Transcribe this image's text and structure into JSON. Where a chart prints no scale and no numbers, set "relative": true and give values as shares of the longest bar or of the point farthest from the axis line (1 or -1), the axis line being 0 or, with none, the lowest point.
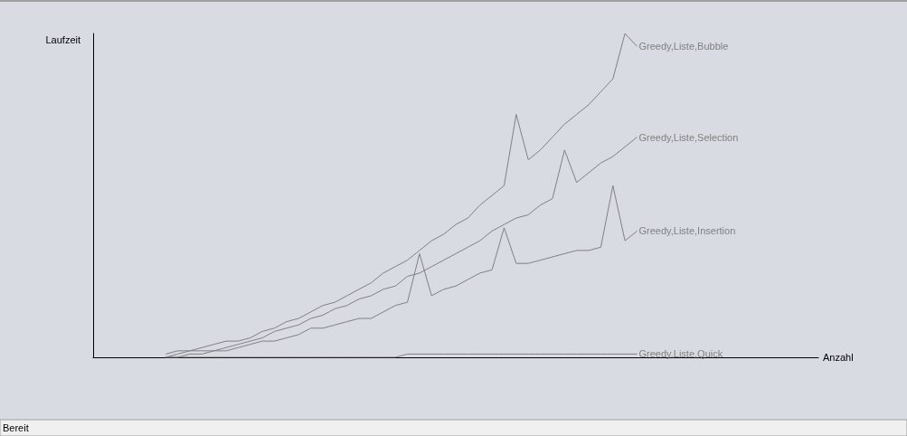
{
  "chart_data": {
    "type": "line",
    "relative": true,
    "ylabel": "Laufzeit",
    "xlabel": "Anzahl",
    "legend": false,
    "marker": "none",
    "line_style": "solid",
    "annotations": [
      "Bereit"
    ],
    "categories": [
      null,
      null,
      null,
      null,
      null,
      null,
      null,
      null,
      null,
      null,
      null,
      null,
      null,
      null,
      null,
      null,
      null,
      null,
      null,
      null,
      null,
      null,
      null,
      null,
      null,
      null,
      null,
      null,
      null,
      null,
      null,
      null,
      null,
      null,
      null,
      null,
      null,
      null,
      null,
      null,
      null,
      null,
      null,
      null,
      null,
      null,
      null,
      null,
      null,
      null,
      null,
      null,
      null,
      null,
      null,
      null,
      null,
      null,
      null,
      null,
      null
    ],
    "series": [
      {
        "name": "Greedy,Liste,Bubble",
        "color": "#808080",
        "values": [
          null,
          null,
          null,
          null,
          null,
          null,
          0.01,
          0.02,
          0.02,
          0.03,
          0.04,
          0.05,
          0.05,
          0.06,
          0.08,
          0.09,
          0.11,
          0.12,
          0.14,
          0.16,
          0.17,
          0.19,
          0.21,
          0.23,
          0.26,
          0.28,
          0.3,
          0.33,
          0.36,
          0.38,
          0.41,
          0.43,
          0.47,
          0.5,
          0.53,
          0.75,
          0.61,
          0.64,
          0.68,
          0.72,
          0.75,
          0.78,
          0.82,
          0.86,
          1,
          0.96,
          null,
          null,
          null,
          null,
          null,
          null,
          null,
          null,
          null,
          null,
          null,
          null,
          null,
          null,
          null
        ]
      },
      {
        "name": "Greedy,Liste,Selection",
        "color": "#808080",
        "values": [
          null,
          null,
          null,
          null,
          null,
          null,
          0,
          0.01,
          0.02,
          0.02,
          0.02,
          0.03,
          0.04,
          0.05,
          0.06,
          0.08,
          0.09,
          0.1,
          0.12,
          0.13,
          0.15,
          0.16,
          0.18,
          0.19,
          0.21,
          0.22,
          0.25,
          0.26,
          0.28,
          0.3,
          0.32,
          0.34,
          0.36,
          0.39,
          0.41,
          0.43,
          0.44,
          0.47,
          0.49,
          0.64,
          0.54,
          0.57,
          0.6,
          0.62,
          0.65,
          0.68,
          null,
          null,
          null,
          null,
          null,
          null,
          null,
          null,
          null,
          null,
          null,
          null,
          null,
          null,
          null
        ]
      },
      {
        "name": "Greedy,Liste,Insertion",
        "color": "#808080",
        "values": [
          null,
          null,
          null,
          null,
          null,
          null,
          0,
          0,
          0.01,
          0.01,
          0.02,
          0.02,
          0.03,
          0.04,
          0.05,
          0.05,
          0.06,
          0.07,
          0.09,
          0.09,
          0.1,
          0.11,
          0.12,
          0.12,
          0.14,
          0.16,
          0.17,
          0.32,
          0.19,
          0.21,
          0.22,
          0.24,
          0.26,
          0.27,
          0.4,
          0.29,
          0.29,
          0.3,
          0.31,
          0.32,
          0.33,
          0.33,
          0.34,
          0.53,
          0.36,
          0.39,
          null,
          null,
          null,
          null,
          null,
          null,
          null,
          null,
          null,
          null,
          null,
          null,
          null,
          null,
          null
        ]
      },
      {
        "name": "Greedy,Liste,Quick",
        "color": "#808080",
        "values": [
          null,
          null,
          null,
          null,
          null,
          null,
          0,
          0,
          0,
          0,
          0,
          0,
          0,
          0,
          0,
          0,
          0,
          0,
          0,
          0,
          0,
          0,
          0,
          0,
          0,
          0,
          0.01,
          0.01,
          0.01,
          0.01,
          0.01,
          0.01,
          0.01,
          0.01,
          0.01,
          0.01,
          0.01,
          0.01,
          0.01,
          0.01,
          0.01,
          0.01,
          0.01,
          0.01,
          0.01,
          0.01,
          null,
          null,
          null,
          null,
          null,
          null,
          null,
          null,
          null,
          null,
          null,
          null,
          null,
          null,
          null
        ]
      }
    ]
  }
}
